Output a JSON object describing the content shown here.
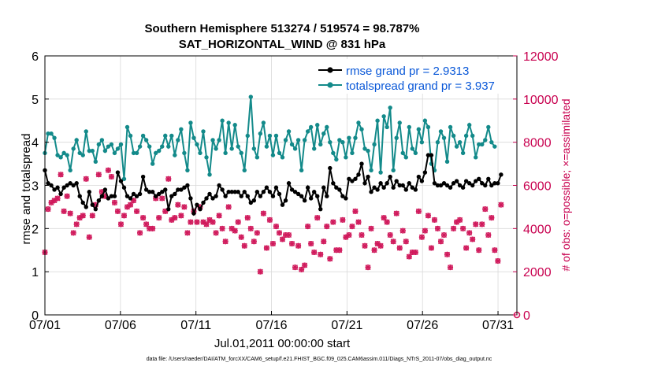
{
  "chart_data": {
    "type": "line",
    "title": "Southern Hemisphere 513274 / 519574 = 98.787%",
    "subtitle": "SAT_HORIZONTAL_WIND @ 831 hPa",
    "xlabel": "Jul.01,2011 00:00:00 start",
    "ylabel": "rmse and totalspread",
    "y2label": "# of obs: o=possible; ×=assimilated",
    "footer": "data file: /Users/raeder/DAI/ATM_forcXX/CAM6_setup/f.e21.FHIST_BGC.f09_025.CAM6assim.011/Diags_NTrS_2011-07/obs_diag_output.nc",
    "xlim": [
      0,
      31.25
    ],
    "ylim": [
      0,
      6
    ],
    "y2lim": [
      0,
      12000
    ],
    "xticks": [
      0,
      5,
      10,
      15,
      20,
      25,
      30
    ],
    "xticklabels": [
      "07/01",
      "07/06",
      "07/11",
      "07/16",
      "07/21",
      "07/26",
      "07/31"
    ],
    "yticks": [
      0,
      1,
      2,
      3,
      4,
      5,
      6
    ],
    "yticklabels": [
      "0",
      "1",
      "2",
      "3",
      "4",
      "5",
      "6"
    ],
    "y2ticks": [
      0,
      2000,
      4000,
      6000,
      8000,
      10000,
      12000
    ],
    "y2ticklabels": [
      "0",
      "2000",
      "4000",
      "6000",
      "8000",
      "10000",
      "12000"
    ],
    "legend": [
      "rmse grand pr = 2.9313",
      "totalspread grand pr = 3.937"
    ],
    "legend_position": "top-right",
    "colors": {
      "rmse": "#000000",
      "spread": "#138a8a",
      "obs": "#d01a5c",
      "legend_text": "#0a58d8"
    },
    "series": [
      {
        "name": "rmse",
        "values": [
          3.35,
          3.05,
          3.0,
          2.9,
          2.95,
          2.8,
          2.95,
          3.0,
          3.05,
          3.0,
          3.05,
          2.75,
          2.6,
          2.5,
          2.85,
          2.55,
          2.45,
          2.65,
          2.75,
          2.9,
          2.7,
          2.75,
          2.75,
          3.3,
          3.1,
          2.95,
          2.75,
          2.7,
          2.8,
          2.75,
          2.8,
          3.2,
          2.9,
          2.85,
          2.85,
          2.75,
          2.8,
          2.85,
          2.9,
          2.45,
          2.75,
          2.8,
          2.9,
          2.9,
          2.95,
          3.0,
          2.7,
          2.35,
          2.55,
          2.45,
          2.6,
          2.7,
          2.8,
          2.7,
          2.75,
          3.0,
          2.9,
          2.75,
          2.85,
          2.85,
          2.85,
          2.85,
          2.75,
          2.85,
          2.75,
          2.6,
          2.65,
          2.85,
          2.75,
          2.85,
          2.95,
          2.85,
          2.75,
          2.95,
          2.8,
          2.55,
          2.65,
          3.05,
          2.9,
          2.85,
          2.8,
          2.75,
          2.65,
          2.95,
          2.7,
          2.85,
          2.75,
          2.45,
          2.95,
          2.75,
          3.4,
          3.05,
          2.95,
          2.9,
          2.75,
          2.7,
          3.15,
          3.1,
          3.15,
          3.25,
          3.5,
          3.05,
          3.2,
          2.85,
          2.95,
          2.9,
          3.05,
          2.95,
          3.05,
          3.2,
          2.95,
          3.1,
          3.0,
          3.0,
          2.9,
          3.05,
          2.95,
          2.9,
          3.2,
          3.1,
          3.3,
          3.7,
          3.7,
          3.05,
          3.0,
          3.0,
          3.05,
          3.0,
          2.95,
          3.05,
          3.1,
          3.0,
          2.95,
          3.1,
          3.05,
          3.0,
          3.1,
          3.15,
          3.05,
          3.0,
          3.15,
          3.0,
          3.05,
          3.05,
          3.25
        ]
      },
      {
        "name": "totalspread",
        "values": [
          3.75,
          4.2,
          4.2,
          4.1,
          3.7,
          3.65,
          3.75,
          3.7,
          3.35,
          3.85,
          4.05,
          3.75,
          3.7,
          4.25,
          3.8,
          3.8,
          3.55,
          3.95,
          4.05,
          3.8,
          3.9,
          3.95,
          3.75,
          3.85,
          3.95,
          3.15,
          4.35,
          4.15,
          3.75,
          3.75,
          3.9,
          4.15,
          4.05,
          3.9,
          3.5,
          3.75,
          3.8,
          3.9,
          4.15,
          3.9,
          4.15,
          3.7,
          4.05,
          4.3,
          3.75,
          3.35,
          4.45,
          4.1,
          3.95,
          3.75,
          4.25,
          3.65,
          3.25,
          4.05,
          3.85,
          4.05,
          4.5,
          3.75,
          4.45,
          3.85,
          4.4,
          3.9,
          3.75,
          3.35,
          4.15,
          5.05,
          3.85,
          3.65,
          4.2,
          4.45,
          3.9,
          4.15,
          3.7,
          4.15,
          3.75,
          3.65,
          4.05,
          4.25,
          3.95,
          3.85,
          4.05,
          3.35,
          4.05,
          4.25,
          4.35,
          3.85,
          4.4,
          3.95,
          4.2,
          4.35,
          4.0,
          3.75,
          3.6,
          4.05,
          4.0,
          3.65,
          4.1,
          3.75,
          4.1,
          4.45,
          4.3,
          3.85,
          3.8,
          3.35,
          3.95,
          4.5,
          3.3,
          4.6,
          4.35,
          4.8,
          3.35,
          4.1,
          4.45,
          3.75,
          3.65,
          4.35,
          3.85,
          3.75,
          4.3,
          4.0,
          4.5,
          4.35,
          3.5,
          3.35,
          4.0,
          4.25,
          4.1,
          3.55,
          4.35,
          4.15,
          3.9,
          4.0,
          3.75,
          4.15,
          4.4,
          4.15,
          3.65,
          3.95,
          3.95,
          4.05,
          4.35,
          4.0,
          3.9
        ]
      },
      {
        "name": "obs_possible",
        "axis": "right",
        "values": [
          2900,
          4900,
          5200,
          5300,
          5400,
          6500,
          4800,
          5500,
          4700,
          3800,
          4200,
          4500,
          4600,
          6300,
          3600,
          4600,
          5100,
          6500,
          5700,
          5500,
          6700,
          6400,
          5200,
          4800,
          4200,
          4600,
          5000,
          5100,
          5300,
          4800,
          3800,
          4500,
          4200,
          4000,
          4000,
          5400,
          4500,
          5400,
          4800,
          6300,
          4400,
          4500,
          5100,
          4600,
          5000,
          3800,
          4300,
          4800,
          4300,
          5000,
          4300,
          4200,
          4400,
          4300,
          3800,
          4600,
          4000,
          3400,
          5000,
          4000,
          3900,
          4300,
          3600,
          3200,
          4500,
          4000,
          3400,
          3800,
          2000,
          4700,
          3100,
          4400,
          3300,
          4100,
          3800,
          3500,
          3700,
          3700,
          3300,
          2200,
          3200,
          2100,
          2300,
          4100,
          3300,
          2900,
          4500,
          2800,
          3400,
          4100,
          2600,
          4300,
          3000,
          3000,
          4400,
          3600,
          3700,
          4100,
          4800,
          4300,
          3700,
          3200,
          2200,
          4000,
          3000,
          3300,
          3200,
          4500,
          4300,
          3700,
          3400,
          4700,
          3100,
          3900,
          3400,
          2700,
          2900,
          2900,
          4800,
          3600,
          3900,
          4600,
          3100,
          4400,
          4000,
          3400,
          3700,
          2800,
          2200,
          4000,
          4300,
          4400,
          4000,
          3100,
          3800,
          3500,
          4200,
          3000,
          4200,
          4900,
          3700,
          4500,
          3000,
          2500,
          5100
        ]
      },
      {
        "name": "obs_assimilated",
        "axis": "right",
        "values": [
          2900,
          4900,
          5200,
          5300,
          5400,
          6500,
          4800,
          5500,
          4700,
          3800,
          4200,
          4500,
          4600,
          6300,
          3600,
          4600,
          5100,
          6500,
          5700,
          5500,
          6700,
          6400,
          5200,
          4800,
          4200,
          4600,
          5000,
          5100,
          5300,
          4800,
          3800,
          4500,
          4200,
          4000,
          4000,
          5400,
          4500,
          5400,
          4800,
          6300,
          4400,
          4500,
          5100,
          4600,
          5000,
          3800,
          4300,
          4800,
          4300,
          5000,
          4300,
          4200,
          4400,
          4300,
          3800,
          4600,
          4000,
          3400,
          5000,
          4000,
          3900,
          4300,
          3600,
          3200,
          4500,
          4000,
          3400,
          3800,
          2000,
          4700,
          3100,
          4400,
          3300,
          4100,
          3800,
          3500,
          3700,
          3700,
          3300,
          2200,
          3200,
          2100,
          2300,
          4100,
          3300,
          2900,
          4500,
          2800,
          3400,
          4100,
          2600,
          4300,
          3000,
          3000,
          4400,
          3600,
          3700,
          4100,
          4800,
          4300,
          3700,
          3200,
          2200,
          4000,
          3000,
          3300,
          3200,
          4500,
          4300,
          3700,
          3400,
          4700,
          3100,
          3900,
          3400,
          2700,
          2900,
          2900,
          4800,
          3600,
          3900,
          4600,
          3100,
          4400,
          4000,
          3400,
          3700,
          2800,
          2200,
          4000,
          4300,
          4400,
          4000,
          3100,
          3800,
          3500,
          4200,
          3000,
          4200,
          4900,
          3700,
          4500,
          3000,
          2500,
          5100
        ]
      }
    ],
    "final_point_note": "last time has 0 obs (marker at x=31.25, y2=0)"
  }
}
